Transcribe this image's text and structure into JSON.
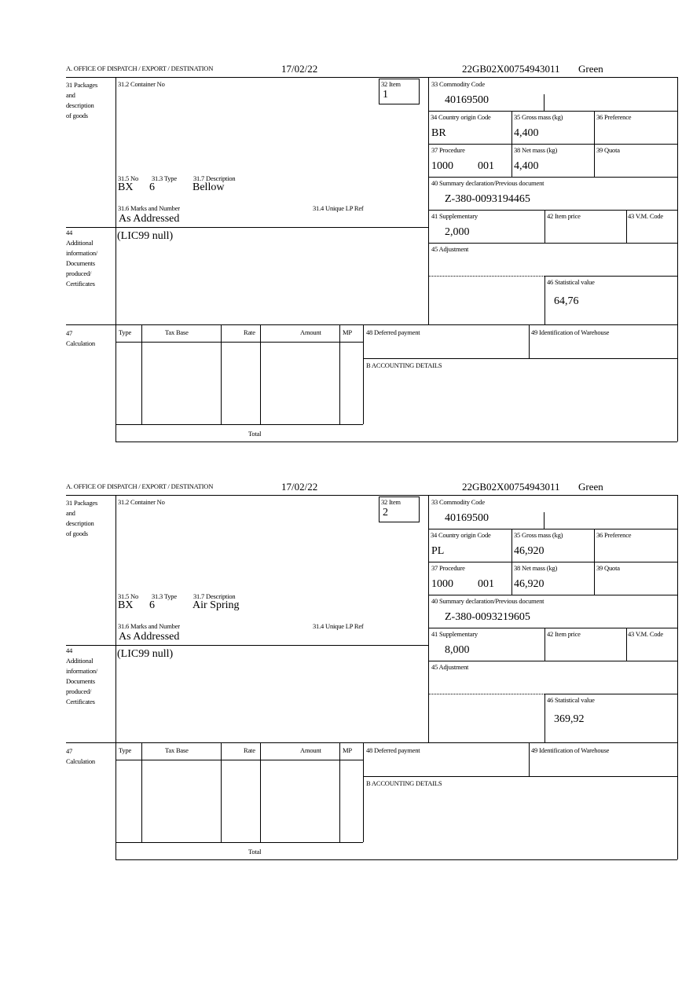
{
  "labels": {
    "office": "A. OFFICE OF DISPATCH / EXPORT / DESTINATION",
    "packages": "31 Packages\nand\ndescription\nof goods",
    "container_no": "31.2 Container No",
    "item": "32 Item",
    "commodity_code": "33 Commodity Code",
    "country_origin": "34 Country origin Code",
    "gross_mass": "35 Gross mass (kg)",
    "preference": "36 Preference",
    "procedure": "37 Procedure",
    "net_mass": "38 Net mass (kg)",
    "quota": "39 Quota",
    "summary_declaration": "40 Summary declaration/Previous document",
    "supplementary": "41 Supplementary",
    "item_price": "42 Item price",
    "vm_code": "43 V.M. Code",
    "adjustment": "45 Adjustment",
    "statistical_value": "46 Statistical value",
    "no": "31.5 No",
    "type": "31.3 Type",
    "description": "31.7 Description",
    "marks": "31.6 Marks and Number",
    "unique_ref": "31.4 Unique LP Ref",
    "additional_info": "44\nAdditional\ninformation/\nDocuments\nproduced/\nCertificates",
    "calculation": "47\nCalculation",
    "calc_type": "Type",
    "calc_tax_base": "Tax Base",
    "calc_rate": "Rate",
    "calc_amount": "Amount",
    "calc_mp": "MP",
    "deferred_payment": "48 Deferred payment",
    "warehouse": "49 Identification of Warehouse",
    "accounting": "B ACCOUNTING DETAILS",
    "total": "Total"
  },
  "items": [
    {
      "date": "17/02/22",
      "reference": "22GB02X00754943011",
      "route": "Green",
      "item_no": "1",
      "commodity_code": "40169500",
      "country_origin": "BR",
      "gross_mass": "4,400",
      "procedure": "1000",
      "procedure_extra": "001",
      "net_mass": "4,400",
      "summary_declaration": "Z-380-0093194465",
      "supplementary": "2,000",
      "statistical_value": "64,76",
      "package_kind": "BX",
      "package_count": "6",
      "description": "Bellow",
      "marks": "As Addressed",
      "additional_info": "(LIC99 null)"
    },
    {
      "date": "17/02/22",
      "reference": "22GB02X00754943011",
      "route": "Green",
      "item_no": "2",
      "commodity_code": "40169500",
      "country_origin": "PL",
      "gross_mass": "46,920",
      "procedure": "1000",
      "procedure_extra": "001",
      "net_mass": "46,920",
      "summary_declaration": "Z-380-0093219605",
      "supplementary": "8,000",
      "statistical_value": "369,92",
      "package_kind": "BX",
      "package_count": "6",
      "description": "Air Spring",
      "marks": "As Addressed",
      "additional_info": "(LIC99 null)"
    }
  ]
}
